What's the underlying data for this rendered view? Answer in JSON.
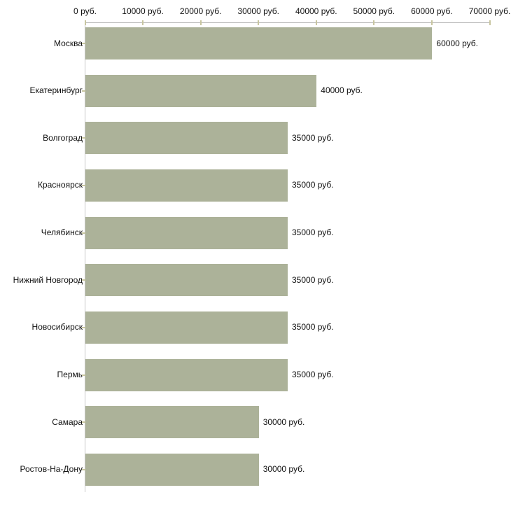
{
  "chart_data": {
    "type": "bar",
    "orientation": "horizontal",
    "title": "",
    "xlabel": "",
    "ylabel": "",
    "unit": "руб.",
    "categories": [
      "Москва",
      "Екатеринбург",
      "Волгоград",
      "Красноярск",
      "Челябинск",
      "Нижний Новгород",
      "Новосибирск",
      "Пермь",
      "Самара",
      "Ростов-На-Дону"
    ],
    "values": [
      60000,
      40000,
      35000,
      35000,
      35000,
      35000,
      35000,
      35000,
      30000,
      30000
    ],
    "value_labels": [
      "60000 руб.",
      "40000 руб.",
      "35000 руб.",
      "35000 руб.",
      "35000 руб.",
      "35000 руб.",
      "35000 руб.",
      "35000 руб.",
      "30000 руб.",
      "30000 руб."
    ],
    "x_axis": {
      "min": 0,
      "max": 70000,
      "tick_interval": 10000,
      "tick_values": [
        0,
        10000,
        20000,
        30000,
        40000,
        50000,
        60000,
        70000
      ],
      "tick_labels": [
        "0 руб.",
        "10000 руб.",
        "20000 руб.",
        "30000 руб.",
        "40000 руб.",
        "50000 руб.",
        "60000 руб.",
        "70000 руб."
      ]
    },
    "grid": false,
    "legend": null,
    "colors": {
      "bar": "#acb299",
      "axis_line": "#b2b2b2",
      "axis_line_vertical": "#c6c6c6",
      "tick": "#c8c6a0",
      "text": "#111111",
      "background": "#ffffff"
    }
  }
}
